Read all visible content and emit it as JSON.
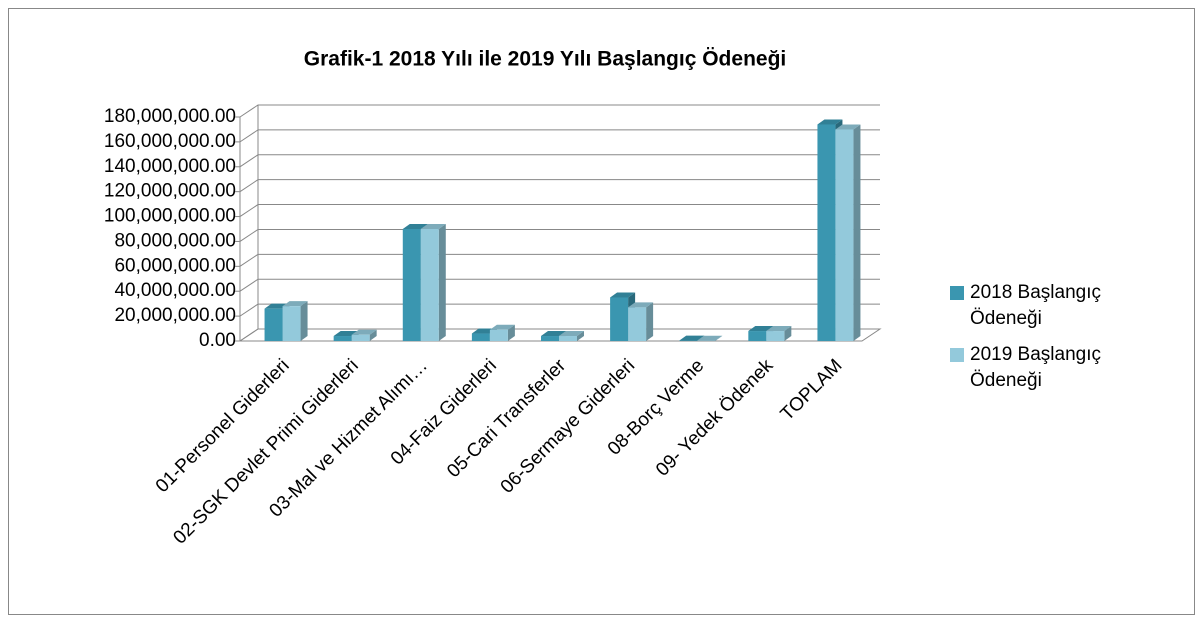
{
  "chart_data": {
    "type": "bar3d",
    "title": "Grafik-1 2018 Yılı ile 2019 Yılı Başlangıç Ödeneği",
    "categories": [
      "01-Personel Giderleri",
      "02-SGK Devlet Primi Giderleri",
      "03-Mal ve Hizmet Alımı…",
      "04-Faiz Giderleri",
      "05-Cari Transferler",
      "06-Sermaye Giderleri",
      "08-Borç Verme",
      "09- Yedek Ödenek",
      "TOPLAM"
    ],
    "series": [
      {
        "name": "2018 Başlangıç Ödeneği",
        "color": "#3a96b0",
        "values": [
          26000000,
          4000000,
          90000000,
          6000000,
          4000000,
          35000000,
          300000,
          8000000,
          174000000
        ]
      },
      {
        "name": "2019 Başlangıç Ödeneği",
        "color": "#93c9db",
        "values": [
          28000000,
          5000000,
          90000000,
          9000000,
          4000000,
          27000000,
          200000,
          8000000,
          170000000
        ]
      }
    ],
    "ylim": [
      0,
      180000000
    ],
    "yticks": [
      {
        "value": 0,
        "label": "0.00"
      },
      {
        "value": 20000000,
        "label": "20,000,000.00"
      },
      {
        "value": 40000000,
        "label": "40,000,000.00"
      },
      {
        "value": 60000000,
        "label": "60,000,000.00"
      },
      {
        "value": 80000000,
        "label": "80,000,000.00"
      },
      {
        "value": 100000000,
        "label": "100,000,000.00"
      },
      {
        "value": 120000000,
        "label": "120,000,000.00"
      },
      {
        "value": 140000000,
        "label": "140,000,000.00"
      },
      {
        "value": 160000000,
        "label": "160,000,000.00"
      },
      {
        "value": 180000000,
        "label": "180,000,000.00"
      }
    ],
    "grid": true,
    "legend": "right"
  }
}
